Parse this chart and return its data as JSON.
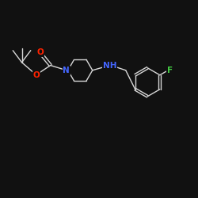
{
  "background_color": "#111111",
  "bond_color": "#d8d8d8",
  "atom_colors": {
    "N": "#4466ff",
    "O": "#ff2200",
    "F": "#44cc44",
    "H": "#d8d8d8",
    "C": "#d8d8d8"
  },
  "figsize": [
    2.5,
    2.5
  ],
  "dpi": 100,
  "xlim": [
    0,
    10
  ],
  "ylim": [
    0,
    10
  ]
}
